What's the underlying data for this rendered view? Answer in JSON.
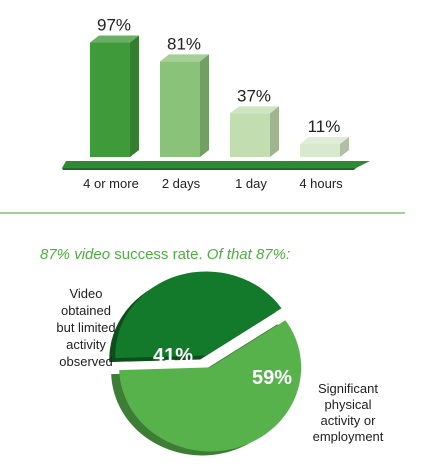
{
  "colors": {
    "dark_green": "#3f9a3a",
    "mid_green": "#8bc27a",
    "light_green": "#c2ddb0",
    "pale_green": "#d8e9cc",
    "pie_dark": "#137a2c",
    "pie_light": "#58b24c",
    "divider": "#66b85c",
    "caption_text": "#4caf3e"
  },
  "chart_data": [
    {
      "type": "bar",
      "categories": [
        "4 or more",
        "2 days",
        "1 day",
        "4 hours"
      ],
      "values": [
        97,
        81,
        37,
        11
      ],
      "value_labels": [
        "97%",
        "81%",
        "37%",
        "11%"
      ],
      "title": "",
      "xlabel": "",
      "ylabel": "",
      "ylim": [
        0,
        100
      ],
      "grid": false,
      "bar_colors": [
        "#3f9a3a",
        "#8bc27a",
        "#c2ddb0",
        "#d8e9cc"
      ]
    },
    {
      "type": "pie",
      "title": "87% video success rate. Of that 87%:",
      "title_parts": [
        {
          "text": "87% video",
          "italic": true
        },
        {
          "text": "success rate.",
          "italic": false
        },
        {
          "text": "Of that 87%:",
          "italic": true
        }
      ],
      "slices": [
        {
          "label": "Video obtained but limited activity observed",
          "label_lines": [
            "Video",
            "obtained",
            "but limited",
            "activity",
            "observed"
          ],
          "value": 41,
          "value_label": "41%",
          "color": "#137a2c"
        },
        {
          "label": "Significant physical activity or employment",
          "label_lines": [
            "Significant",
            "physical",
            "activity or",
            "employment"
          ],
          "value": 59,
          "value_label": "59%",
          "color": "#58b24c"
        }
      ]
    }
  ]
}
